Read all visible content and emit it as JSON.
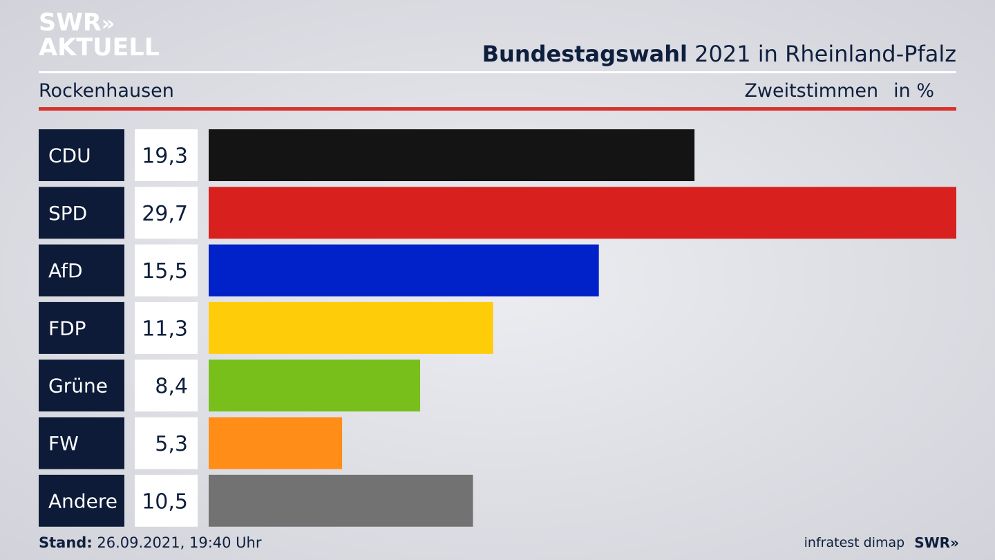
{
  "logo": {
    "line1": "SWR",
    "line1_mark": "»",
    "line2": "AKTUELL"
  },
  "header": {
    "title_strong": "Bundestagswahl",
    "title_rest": " 2021 in Rheinland-Pfalz",
    "region": "Rockenhausen",
    "measure": "Zweitstimmen",
    "unit": "in %"
  },
  "chart_data": {
    "type": "bar",
    "orientation": "horizontal",
    "categories": [
      "CDU",
      "SPD",
      "AfD",
      "FDP",
      "Grüne",
      "FW",
      "Andere"
    ],
    "values": [
      19.3,
      29.7,
      15.5,
      11.3,
      8.4,
      5.3,
      10.5
    ],
    "value_labels": [
      "19,3",
      "29,7",
      "15,5",
      "11,3",
      "8,4",
      "5,3",
      "10,5"
    ],
    "colors": [
      "#141414",
      "#d8201f",
      "#0022c8",
      "#ffcc0a",
      "#78bf1c",
      "#ff8d17",
      "#727272"
    ],
    "label_bg": "#0d1b38",
    "value_bg": "#ffffff",
    "xlim": [
      0,
      29.7
    ]
  },
  "footer": {
    "stand_label": "Stand:",
    "stand_value": " 26.09.2021, 19:40 Uhr",
    "source": "infratest dimap",
    "brand": "SWR",
    "brand_mark": "»"
  }
}
